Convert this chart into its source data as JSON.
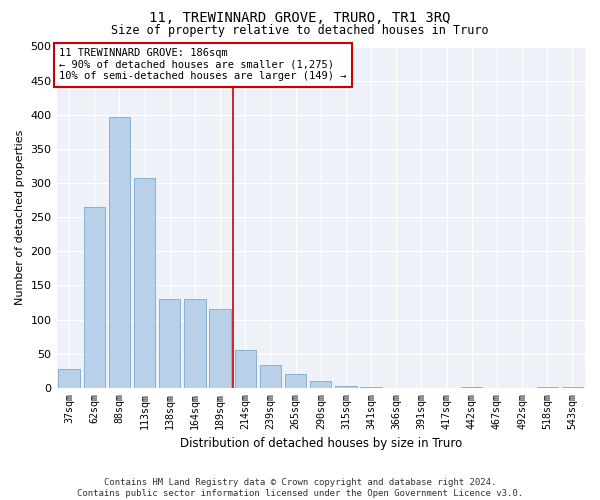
{
  "title": "11, TREWINNARD GROVE, TRURO, TR1 3RQ",
  "subtitle": "Size of property relative to detached houses in Truro",
  "xlabel": "Distribution of detached houses by size in Truro",
  "ylabel": "Number of detached properties",
  "bar_color": "#b8d0e8",
  "bar_edge_color": "#7aabcf",
  "background_color": "#eef2f8",
  "grid_color": "#ffffff",
  "categories": [
    "37sqm",
    "62sqm",
    "88sqm",
    "113sqm",
    "138sqm",
    "164sqm",
    "189sqm",
    "214sqm",
    "239sqm",
    "265sqm",
    "290sqm",
    "315sqm",
    "341sqm",
    "366sqm",
    "391sqm",
    "417sqm",
    "442sqm",
    "467sqm",
    "492sqm",
    "518sqm",
    "543sqm"
  ],
  "values": [
    27,
    265,
    397,
    308,
    130,
    130,
    115,
    55,
    33,
    20,
    10,
    2,
    1,
    0,
    0,
    0,
    1,
    0,
    0,
    1,
    1
  ],
  "ylim": [
    0,
    500
  ],
  "yticks": [
    0,
    50,
    100,
    150,
    200,
    250,
    300,
    350,
    400,
    450,
    500
  ],
  "vline_position": 6.5,
  "vline_color": "#cc0000",
  "annotation_text": "11 TREWINNARD GROVE: 186sqm\n← 90% of detached houses are smaller (1,275)\n10% of semi-detached houses are larger (149) →",
  "annotation_box_color": "#ffffff",
  "annotation_box_edge": "#cc0000",
  "footer1": "Contains HM Land Registry data © Crown copyright and database right 2024.",
  "footer2": "Contains public sector information licensed under the Open Government Licence v3.0."
}
